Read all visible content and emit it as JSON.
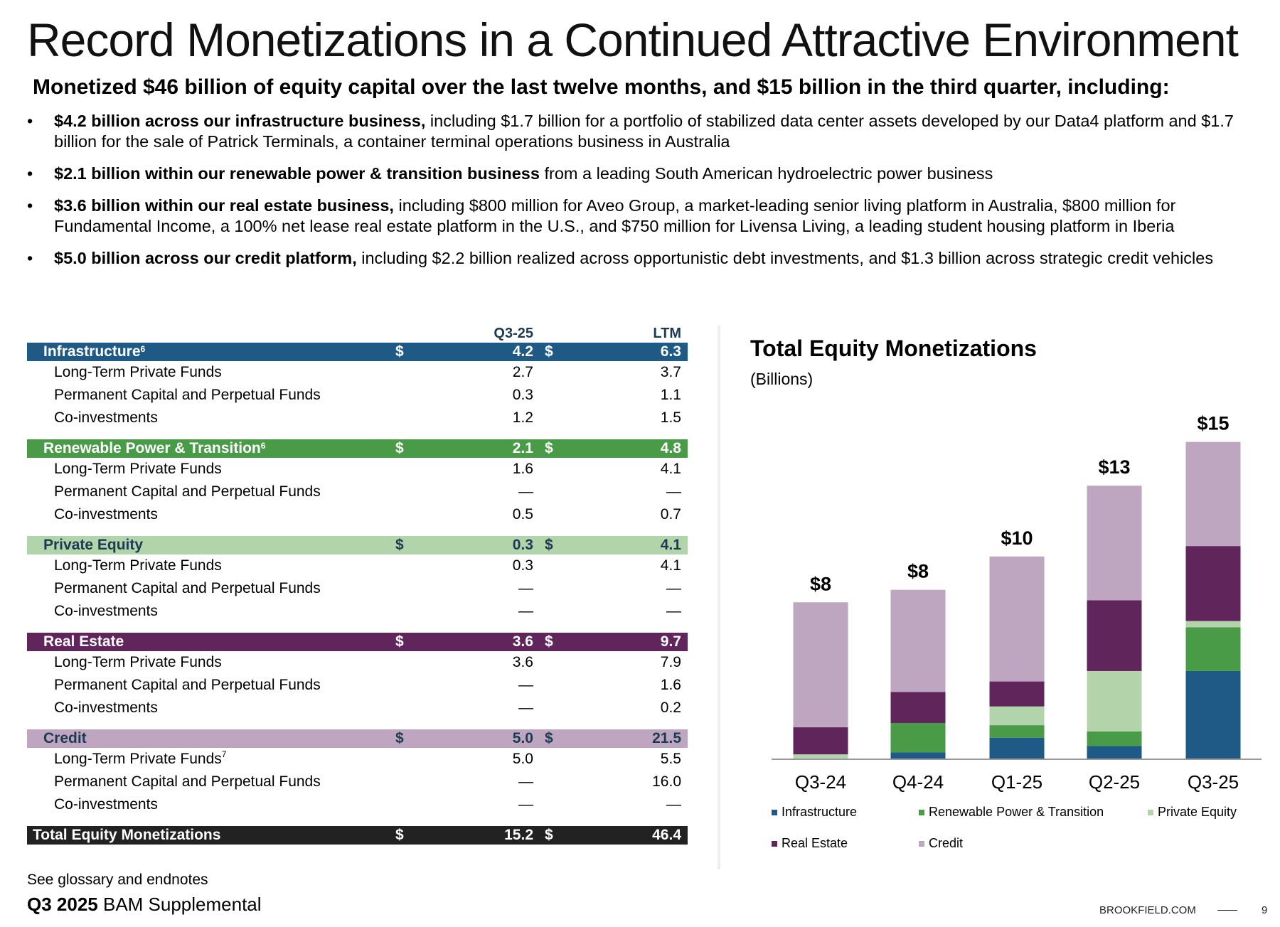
{
  "title": "Record Monetizations in a Continued Attractive Environment",
  "subtitle": "Monetized $46 billion of equity capital over the last twelve months, and $15 billion in the third quarter, including:",
  "bullets": [
    {
      "bold": "$4.2 billion across our infrastructure business,",
      "text": " including $1.7 billion for a portfolio of stabilized data center assets developed by our Data4 platform and $1.7 billion for the sale of Patrick Terminals, a container terminal operations business in Australia"
    },
    {
      "bold": "$2.1 billion within our renewable power & transition business",
      "text": " from a leading South American hydroelectric power business"
    },
    {
      "bold": "$3.6 billion within our real estate business,",
      "text": " including $800 million for Aveo Group, a market-leading senior living platform in Australia, $800 million for Fundamental Income, a 100% net lease real estate platform in the U.S., and $750 million for Livensa Living, a leading student housing platform in Iberia"
    },
    {
      "bold": "$5.0 billion across our credit platform,",
      "text": " including $2.2 billion realized across opportunistic debt investments, and $1.3 billion across strategic credit vehicles"
    }
  ],
  "table": {
    "col1": "Q3-25",
    "col2": "LTM",
    "currency": "$",
    "sections": [
      {
        "name": "Infrastructure",
        "sup": "6",
        "color": "#1f5a87",
        "text_color": "#ffffff",
        "q3": "4.2",
        "ltm": "6.3",
        "rows": [
          [
            "Long-Term Private Funds",
            "",
            "2.7",
            "3.7"
          ],
          [
            "Permanent Capital and Perpetual Funds",
            "",
            "0.3",
            "1.1"
          ],
          [
            "Co-investments",
            "",
            "1.2",
            "1.5"
          ]
        ]
      },
      {
        "name": "Renewable Power & Transition",
        "sup": "6",
        "color": "#4a9b47",
        "text_color": "#ffffff",
        "q3": "2.1",
        "ltm": "4.8",
        "rows": [
          [
            "Long-Term Private Funds",
            "",
            "1.6",
            "4.1"
          ],
          [
            "Permanent Capital and Perpetual Funds",
            "",
            "—",
            "—"
          ],
          [
            "Co-investments",
            "",
            "0.5",
            "0.7"
          ]
        ]
      },
      {
        "name": "Private Equity",
        "sup": "",
        "color": "#b1d4ab",
        "text_color": "#1d3a52",
        "q3": "0.3",
        "ltm": "4.1",
        "rows": [
          [
            "Long-Term Private Funds",
            "",
            "0.3",
            "4.1"
          ],
          [
            "Permanent Capital and Perpetual Funds",
            "",
            "—",
            "—"
          ],
          [
            "Co-investments",
            "",
            "—",
            "—"
          ]
        ]
      },
      {
        "name": "Real Estate",
        "sup": "",
        "color": "#60265c",
        "text_color": "#ffffff",
        "q3": "3.6",
        "ltm": "9.7",
        "rows": [
          [
            "Long-Term Private Funds",
            "",
            "3.6",
            "7.9"
          ],
          [
            "Permanent Capital and Perpetual Funds",
            "",
            "—",
            "1.6"
          ],
          [
            "Co-investments",
            "",
            "—",
            "0.2"
          ]
        ]
      },
      {
        "name": "Credit",
        "sup": "",
        "color": "#bfa6c0",
        "text_color": "#1d3a52",
        "q3": "5.0",
        "ltm": "21.5",
        "rows": [
          [
            "Long-Term Private Funds",
            "7",
            "5.0",
            "5.5"
          ],
          [
            "Permanent Capital and Perpetual Funds",
            "",
            "—",
            "16.0"
          ],
          [
            "Co-investments",
            "",
            "—",
            "—"
          ]
        ]
      }
    ],
    "total": {
      "name": "Total Equity Monetizations",
      "color": "#222222",
      "q3": "15.2",
      "ltm": "46.4"
    }
  },
  "chart_data": {
    "type": "bar",
    "stacked": true,
    "title": "Total Equity Monetizations",
    "subtitle": "(Billions)",
    "categories": [
      "Q3-24",
      "Q4-24",
      "Q1-25",
      "Q2-25",
      "Q3-25"
    ],
    "total_labels": [
      "$8",
      "$8",
      "$10",
      "$13",
      "$15"
    ],
    "series": [
      {
        "name": "Infrastructure",
        "color": "#1f5a87",
        "values": [
          0.0,
          0.3,
          1.0,
          0.6,
          4.2
        ]
      },
      {
        "name": "Renewable Power & Transition",
        "color": "#4a9b47",
        "values": [
          0.0,
          1.4,
          0.6,
          0.7,
          2.1
        ]
      },
      {
        "name": "Private Equity",
        "color": "#b1d4ab",
        "values": [
          0.2,
          0.0,
          0.9,
          2.9,
          0.3
        ]
      },
      {
        "name": "Real Estate",
        "color": "#60265c",
        "values": [
          1.3,
          1.5,
          1.2,
          3.4,
          3.6
        ]
      },
      {
        "name": "Credit",
        "color": "#bfa6c0",
        "values": [
          6.0,
          4.9,
          6.0,
          5.5,
          5.0
        ]
      }
    ],
    "ylim": [
      0,
      16
    ],
    "legend": "bottom"
  },
  "footer": {
    "note": "See glossary and endnotes",
    "report_bold": "Q3 2025",
    "report_rest": " BAM Supplemental",
    "brand": "BROOKFIELD.COM",
    "page": "9"
  }
}
